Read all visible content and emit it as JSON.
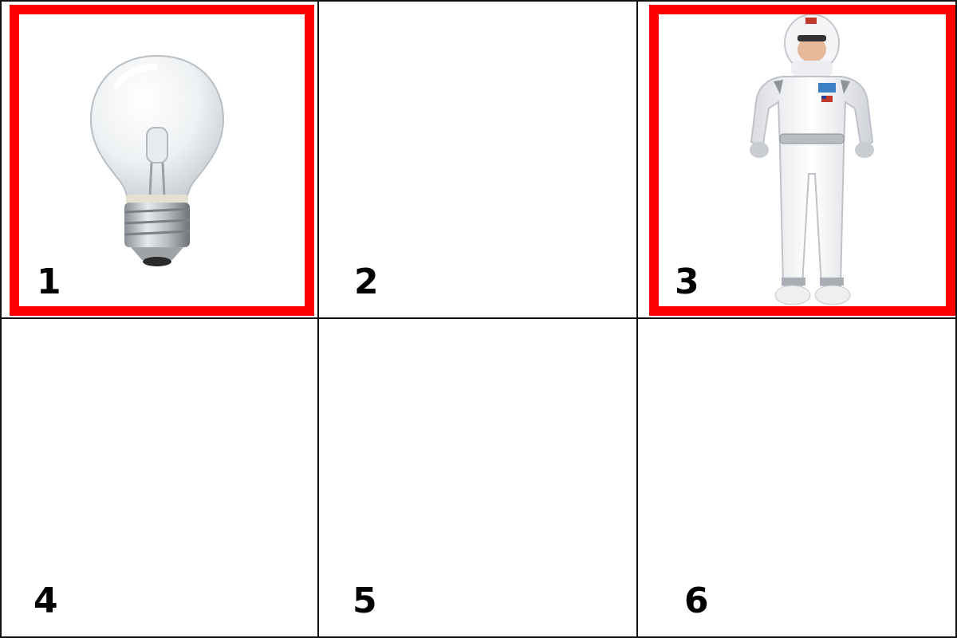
{
  "tiles": [
    {
      "number": "1",
      "picture": "light-bulb",
      "selected": true
    },
    {
      "number": "2",
      "picture": "",
      "selected": false
    },
    {
      "number": "3",
      "picture": "astronaut",
      "selected": true
    },
    {
      "number": "4",
      "picture": "",
      "selected": false
    },
    {
      "number": "5",
      "picture": "",
      "selected": false
    },
    {
      "number": "6",
      "picture": "",
      "selected": false
    }
  ],
  "colors": {
    "selection": "#ff0000",
    "grid_line": "#111111",
    "number": "#000000"
  }
}
